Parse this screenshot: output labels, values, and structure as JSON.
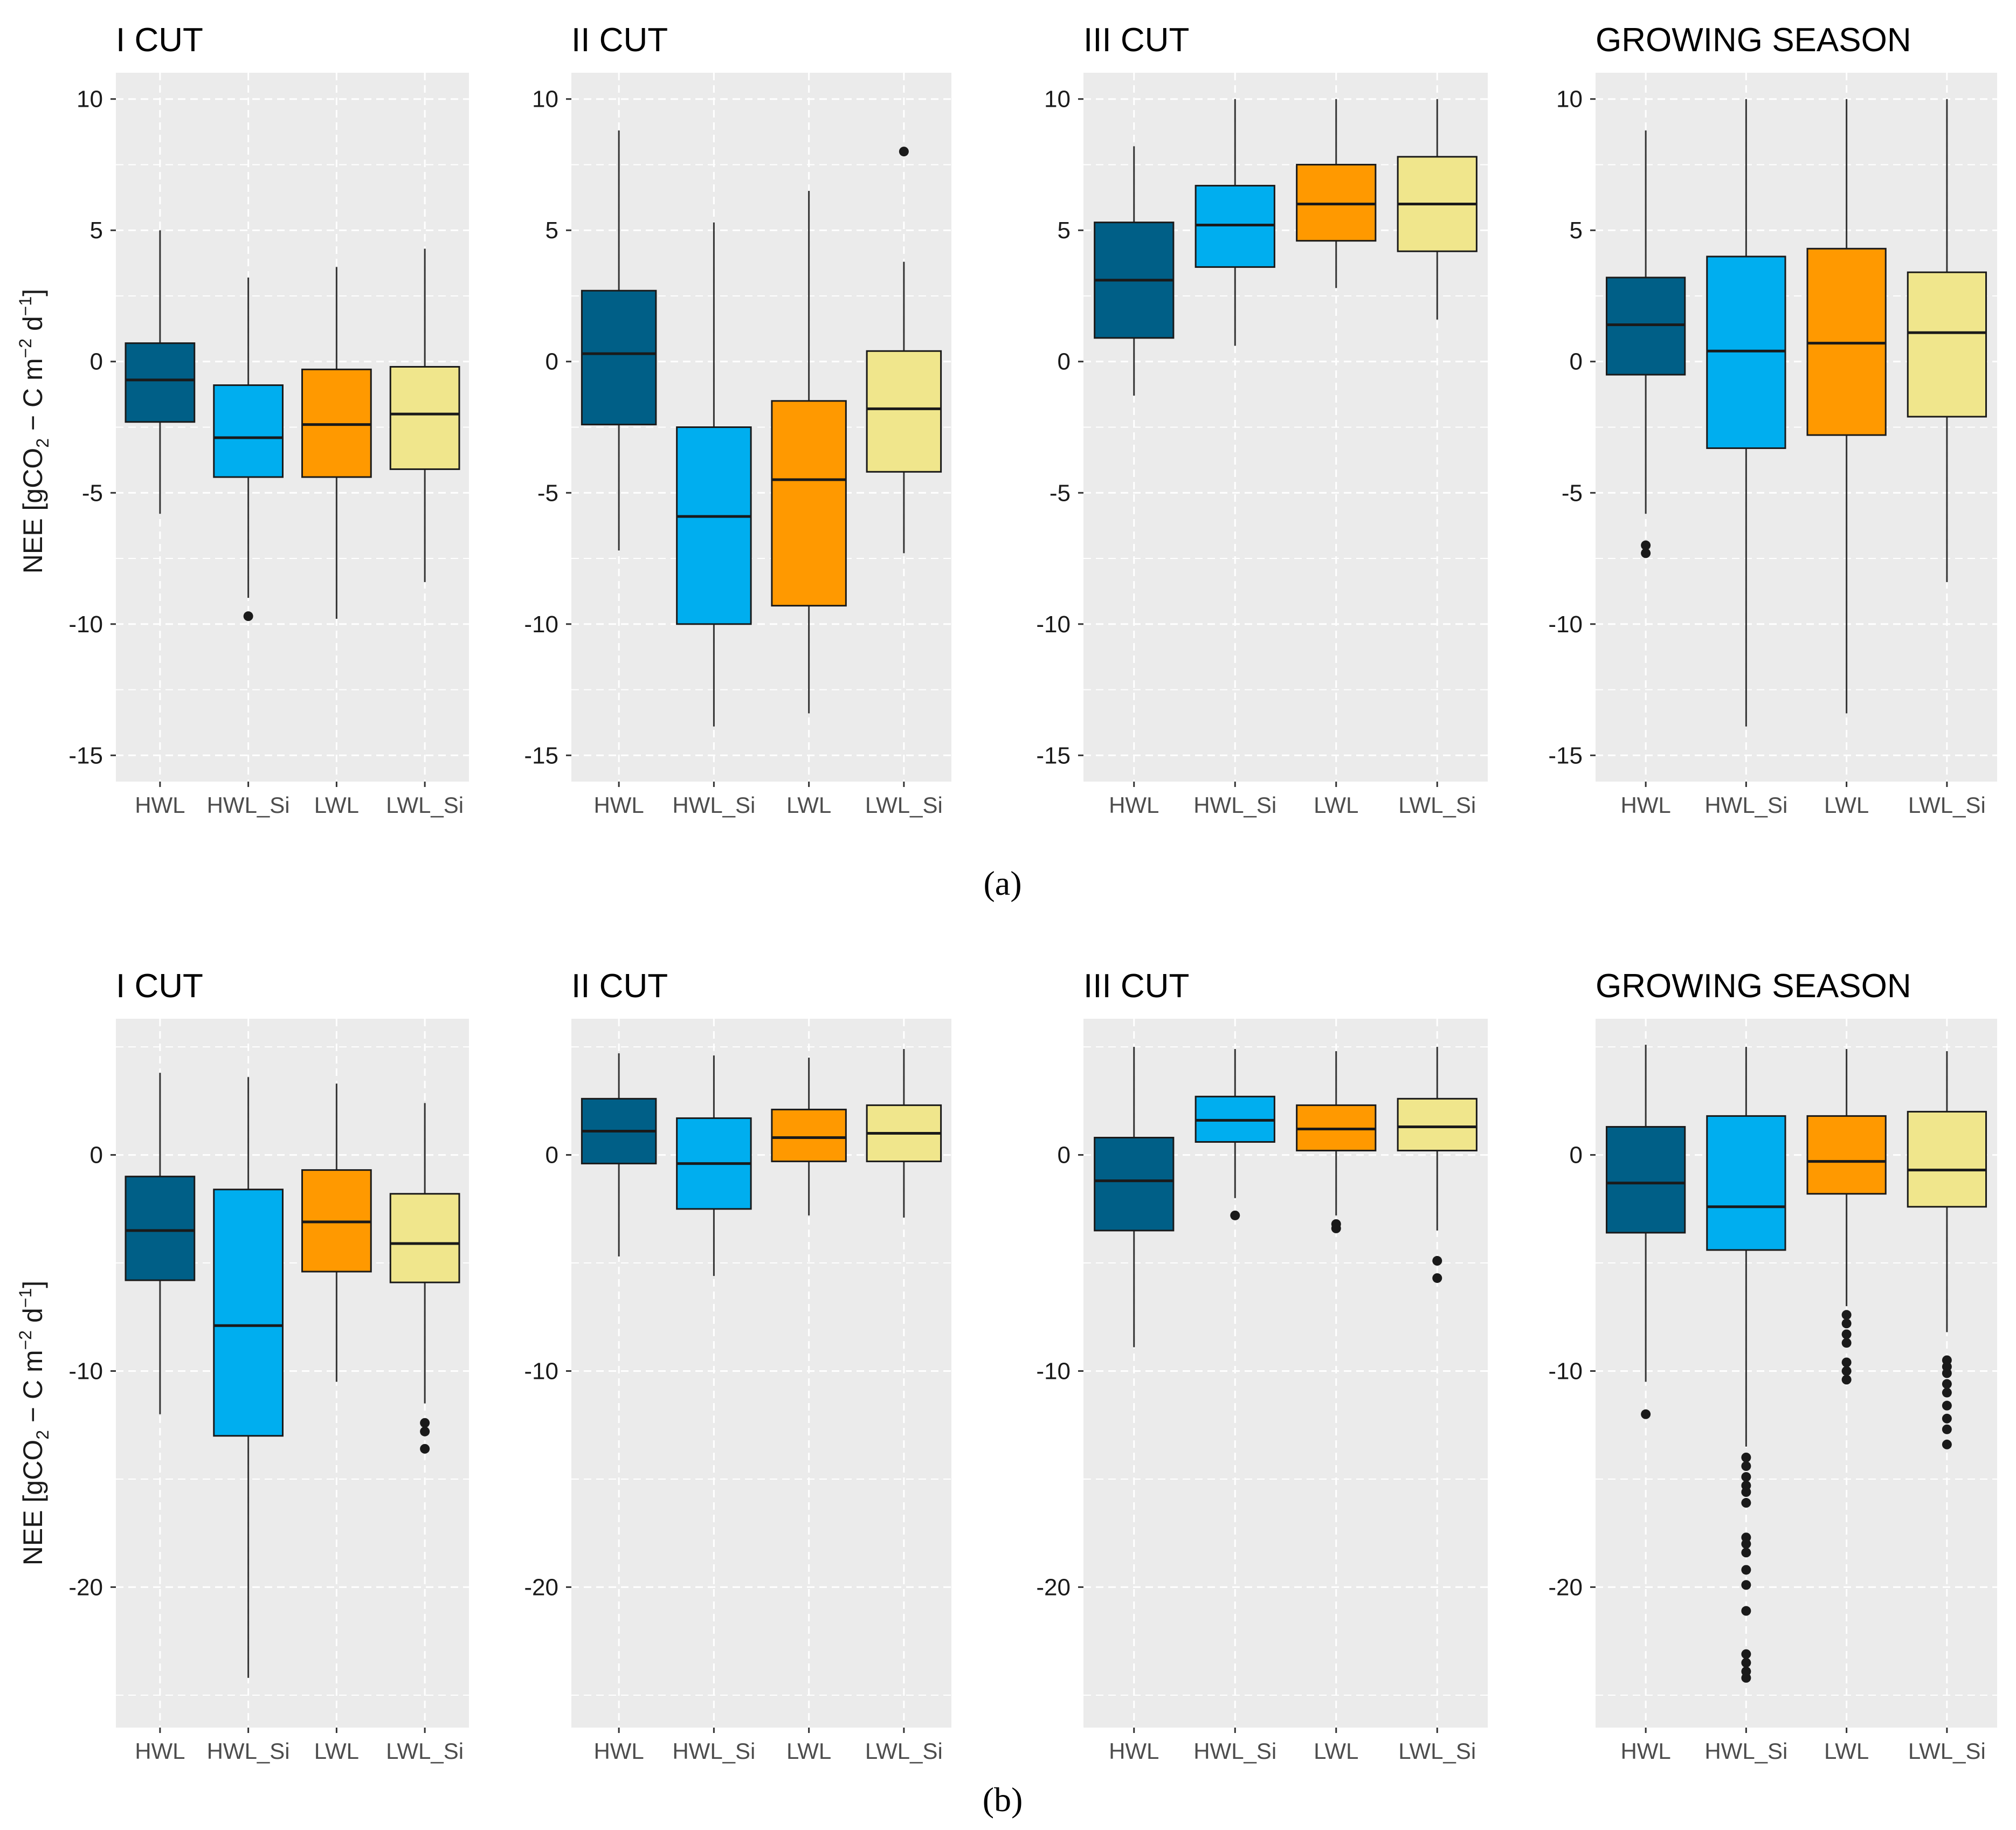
{
  "figure": {
    "y_axis_title_main": "NEE [gCO",
    "y_axis_title_sub2": "2",
    "y_axis_title_mid": " − C m",
    "y_axis_title_sup1": "−2",
    "y_axis_title_mid2": " d",
    "y_axis_title_sup2": "−1",
    "y_axis_title_end": "]",
    "subfigure_labels": [
      "(a)",
      "(b)"
    ]
  },
  "colors": {
    "HWL": "#005F87",
    "HWL_Si": "#00AEEF",
    "LWL": "#FF9900",
    "LWL_Si": "#F0E68C"
  },
  "chart_data": [
    {
      "type": "boxplot",
      "row": "a",
      "title": "I CUT",
      "categories": [
        "HWL",
        "HWL_Si",
        "LWL",
        "LWL_Si"
      ],
      "ylim": [
        -16,
        11
      ],
      "yticks": [
        10,
        5,
        0,
        -5,
        -10,
        -15
      ],
      "yticklabels": [
        "10",
        "5",
        "0",
        "-5",
        "-10",
        "-15"
      ],
      "boxes": [
        {
          "q1": -2.3,
          "median": -0.7,
          "q3": 0.7,
          "wlo": -5.8,
          "whi": 5.0,
          "outliers": []
        },
        {
          "q1": -4.4,
          "median": -2.9,
          "q3": -0.9,
          "wlo": -9.0,
          "whi": 3.2,
          "outliers": [
            -9.7
          ]
        },
        {
          "q1": -4.4,
          "median": -2.4,
          "q3": -0.3,
          "wlo": -9.8,
          "whi": 3.6,
          "outliers": []
        },
        {
          "q1": -4.1,
          "median": -2.0,
          "q3": -0.2,
          "wlo": -8.4,
          "whi": 4.3,
          "outliers": []
        }
      ]
    },
    {
      "type": "boxplot",
      "row": "a",
      "title": "II CUT",
      "categories": [
        "HWL",
        "HWL_Si",
        "LWL",
        "LWL_Si"
      ],
      "ylim": [
        -16,
        11
      ],
      "yticks": [
        10,
        5,
        0,
        -5,
        -10,
        -15
      ],
      "yticklabels": [
        "10",
        "5",
        "0",
        "-5",
        "-10",
        "-15"
      ],
      "boxes": [
        {
          "q1": -2.4,
          "median": 0.3,
          "q3": 2.7,
          "wlo": -7.2,
          "whi": 8.8,
          "outliers": []
        },
        {
          "q1": -10.0,
          "median": -5.9,
          "q3": -2.5,
          "wlo": -13.9,
          "whi": 5.3,
          "outliers": []
        },
        {
          "q1": -9.3,
          "median": -4.5,
          "q3": -1.5,
          "wlo": -13.4,
          "whi": 6.5,
          "outliers": []
        },
        {
          "q1": -4.2,
          "median": -1.8,
          "q3": 0.4,
          "wlo": -7.3,
          "whi": 3.8,
          "outliers": [
            8.0
          ]
        }
      ]
    },
    {
      "type": "boxplot",
      "row": "a",
      "title": "III CUT",
      "categories": [
        "HWL",
        "HWL_Si",
        "LWL",
        "LWL_Si"
      ],
      "ylim": [
        -16,
        11
      ],
      "yticks": [
        10,
        5,
        0,
        -5,
        -10,
        -15
      ],
      "yticklabels": [
        "10",
        "5",
        "0",
        "-5",
        "-10",
        "-15"
      ],
      "boxes": [
        {
          "q1": 0.9,
          "median": 3.1,
          "q3": 5.3,
          "wlo": -1.3,
          "whi": 8.2,
          "outliers": []
        },
        {
          "q1": 3.6,
          "median": 5.2,
          "q3": 6.7,
          "wlo": 0.6,
          "whi": 10.0,
          "outliers": []
        },
        {
          "q1": 4.6,
          "median": 6.0,
          "q3": 7.5,
          "wlo": 2.8,
          "whi": 10.0,
          "outliers": []
        },
        {
          "q1": 4.2,
          "median": 6.0,
          "q3": 7.8,
          "wlo": 1.6,
          "whi": 10.0,
          "outliers": []
        }
      ]
    },
    {
      "type": "boxplot",
      "row": "a",
      "title": "GROWING SEASON",
      "categories": [
        "HWL",
        "HWL_Si",
        "LWL",
        "LWL_Si"
      ],
      "ylim": [
        -16,
        11
      ],
      "yticks": [
        10,
        5,
        0,
        -5,
        -10,
        -15
      ],
      "yticklabels": [
        "10",
        "5",
        "0",
        "-5",
        "-10",
        "-15"
      ],
      "boxes": [
        {
          "q1": -0.5,
          "median": 1.4,
          "q3": 3.2,
          "wlo": -5.8,
          "whi": 8.8,
          "outliers": [
            -7.0,
            -7.3
          ]
        },
        {
          "q1": -3.3,
          "median": 0.4,
          "q3": 4.0,
          "wlo": -13.9,
          "whi": 10.0,
          "outliers": []
        },
        {
          "q1": -2.8,
          "median": 0.7,
          "q3": 4.3,
          "wlo": -13.4,
          "whi": 10.0,
          "outliers": []
        },
        {
          "q1": -2.1,
          "median": 1.1,
          "q3": 3.4,
          "wlo": -8.4,
          "whi": 10.0,
          "outliers": []
        }
      ]
    },
    {
      "type": "boxplot",
      "row": "b",
      "title": "I CUT",
      "categories": [
        "HWL",
        "HWL_Si",
        "LWL",
        "LWL_Si"
      ],
      "ylim": [
        -26.5,
        6.3
      ],
      "yticks": [
        0,
        -10,
        -20
      ],
      "yticklabels": [
        "0",
        "-10",
        "-20"
      ],
      "boxes": [
        {
          "q1": -5.8,
          "median": -3.5,
          "q3": -1.0,
          "wlo": -12.0,
          "whi": 3.8,
          "outliers": []
        },
        {
          "q1": -13.0,
          "median": -7.9,
          "q3": -1.6,
          "wlo": -24.2,
          "whi": 3.6,
          "outliers": []
        },
        {
          "q1": -5.4,
          "median": -3.1,
          "q3": -0.7,
          "wlo": -10.5,
          "whi": 3.3,
          "outliers": []
        },
        {
          "q1": -5.9,
          "median": -4.1,
          "q3": -1.8,
          "wlo": -11.5,
          "whi": 2.4,
          "outliers": [
            -12.4,
            -12.8,
            -13.6
          ]
        }
      ]
    },
    {
      "type": "boxplot",
      "row": "b",
      "title": "II CUT",
      "categories": [
        "HWL",
        "HWL_Si",
        "LWL",
        "LWL_Si"
      ],
      "ylim": [
        -26.5,
        6.3
      ],
      "yticks": [
        0,
        -10,
        -20
      ],
      "yticklabels": [
        "0",
        "-10",
        "-20"
      ],
      "boxes": [
        {
          "q1": -0.4,
          "median": 1.1,
          "q3": 2.6,
          "wlo": -4.7,
          "whi": 4.7,
          "outliers": []
        },
        {
          "q1": -2.5,
          "median": -0.4,
          "q3": 1.7,
          "wlo": -5.6,
          "whi": 4.6,
          "outliers": []
        },
        {
          "q1": -0.3,
          "median": 0.8,
          "q3": 2.1,
          "wlo": -2.8,
          "whi": 4.5,
          "outliers": []
        },
        {
          "q1": -0.3,
          "median": 1.0,
          "q3": 2.3,
          "wlo": -2.9,
          "whi": 4.9,
          "outliers": []
        }
      ]
    },
    {
      "type": "boxplot",
      "row": "b",
      "title": "III CUT",
      "categories": [
        "HWL",
        "HWL_Si",
        "LWL",
        "LWL_Si"
      ],
      "ylim": [
        -26.5,
        6.3
      ],
      "yticks": [
        0,
        -10,
        -20
      ],
      "yticklabels": [
        "0",
        "-10",
        "-20"
      ],
      "boxes": [
        {
          "q1": -3.5,
          "median": -1.2,
          "q3": 0.8,
          "wlo": -8.9,
          "whi": 5.0,
          "outliers": []
        },
        {
          "q1": 0.6,
          "median": 1.6,
          "q3": 2.7,
          "wlo": -2.0,
          "whi": 4.9,
          "outliers": [
            -2.8
          ]
        },
        {
          "q1": 0.2,
          "median": 1.2,
          "q3": 2.3,
          "wlo": -2.8,
          "whi": 4.8,
          "outliers": [
            -3.2,
            -3.4
          ]
        },
        {
          "q1": 0.2,
          "median": 1.3,
          "q3": 2.6,
          "wlo": -3.5,
          "whi": 5.0,
          "outliers": [
            -4.9,
            -5.7
          ]
        }
      ]
    },
    {
      "type": "boxplot",
      "row": "b",
      "title": "GROWING SEASON",
      "categories": [
        "HWL",
        "HWL_Si",
        "LWL",
        "LWL_Si"
      ],
      "ylim": [
        -26.5,
        6.3
      ],
      "yticks": [
        0,
        -10,
        -20
      ],
      "yticklabels": [
        "0",
        "-10",
        "-20"
      ],
      "boxes": [
        {
          "q1": -3.6,
          "median": -1.3,
          "q3": 1.3,
          "wlo": -10.5,
          "whi": 5.1,
          "outliers": [
            -12.0
          ]
        },
        {
          "q1": -4.4,
          "median": -2.4,
          "q3": 1.8,
          "wlo": -13.5,
          "whi": 5.0,
          "outliers": [
            -14.0,
            -14.4,
            -14.9,
            -15.3,
            -15.6,
            -16.1,
            -17.7,
            -18.0,
            -18.4,
            -19.2,
            -19.9,
            -21.1,
            -23.1,
            -23.5,
            -23.9,
            -24.2
          ]
        },
        {
          "q1": -1.8,
          "median": -0.3,
          "q3": 1.8,
          "wlo": -7.0,
          "whi": 4.9,
          "outliers": [
            -7.4,
            -7.8,
            -8.3,
            -8.7,
            -9.6,
            -10.0,
            -10.4
          ]
        },
        {
          "q1": -2.4,
          "median": -0.7,
          "q3": 2.0,
          "wlo": -8.2,
          "whi": 4.8,
          "outliers": [
            -9.5,
            -9.8,
            -10.1,
            -10.6,
            -11.0,
            -11.6,
            -12.2,
            -12.7,
            -13.4
          ]
        }
      ]
    }
  ]
}
